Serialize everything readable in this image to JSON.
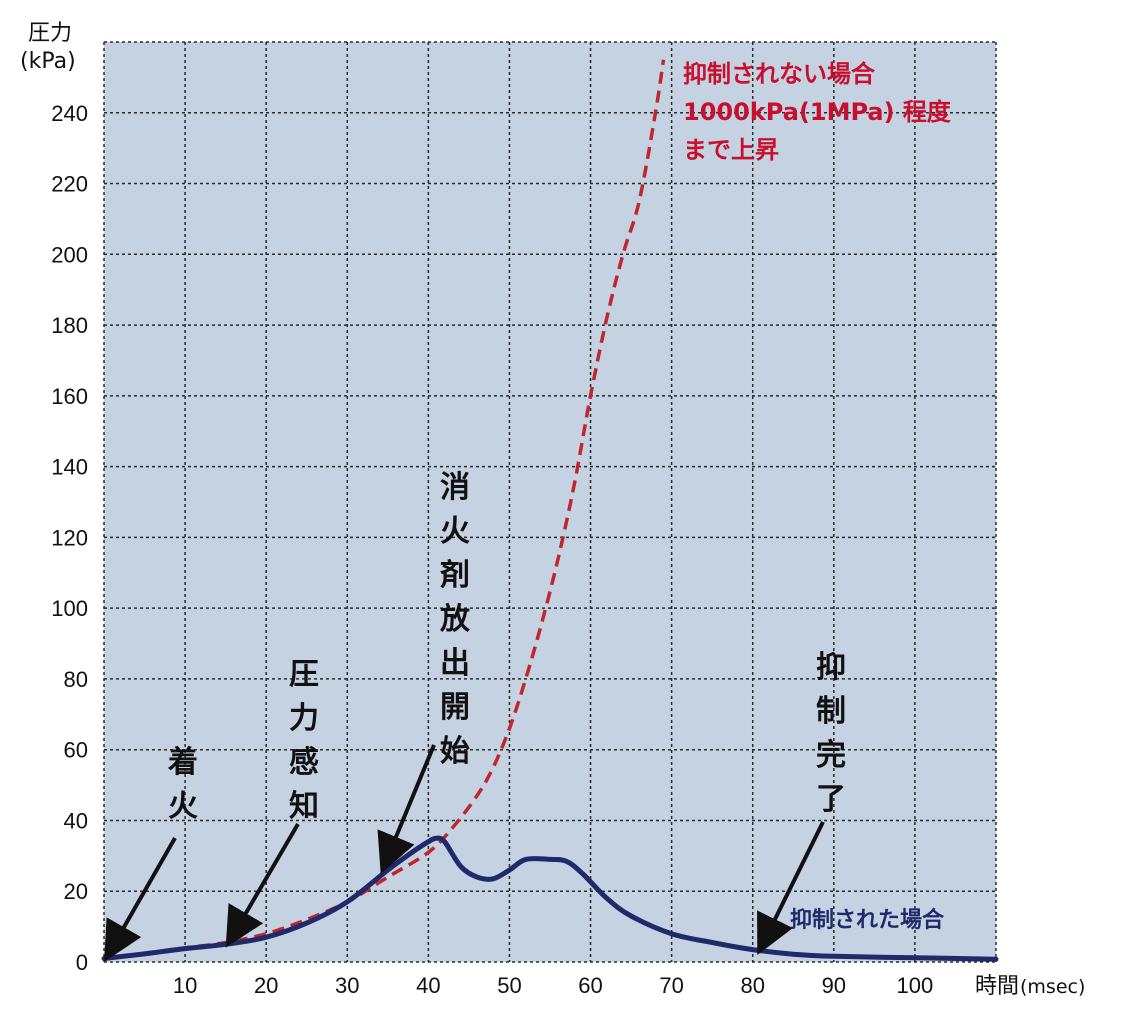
{
  "chart_data": {
    "type": "line",
    "ylabel": "圧力",
    "yunit": "(kPa)",
    "xlabel": "時間",
    "xunit": "(msec)",
    "xlim": [
      0,
      110
    ],
    "ylim": [
      0,
      260
    ],
    "xticks": [
      10,
      20,
      30,
      40,
      50,
      60,
      70,
      80,
      90,
      100
    ],
    "yticks": [
      0,
      20,
      40,
      60,
      80,
      100,
      120,
      140,
      160,
      180,
      200,
      220,
      240
    ],
    "grid": true,
    "background_color": "#c5d2e2",
    "series": [
      {
        "name": "抑制されない場合",
        "style": "dashed",
        "color": "#c0272d",
        "x": [
          0,
          5,
          10,
          15,
          20,
          25,
          30,
          35,
          40,
          43,
          46,
          48,
          50,
          52,
          54,
          56,
          58,
          60,
          62,
          64,
          66,
          68,
          69
        ],
        "y": [
          1,
          2.5,
          4,
          5.5,
          8,
          12,
          17,
          24,
          31,
          38,
          47,
          55,
          66,
          80,
          96,
          114,
          135,
          160,
          182,
          200,
          215,
          240,
          255
        ]
      },
      {
        "name": "抑制された場合",
        "style": "solid",
        "color": "#1f2a6b",
        "x": [
          0,
          5,
          10,
          15,
          20,
          25,
          30,
          35,
          38,
          40,
          41,
          42,
          44,
          46,
          48,
          50,
          52,
          55,
          57,
          59,
          62,
          65,
          70,
          75,
          80,
          85,
          90,
          100,
          110
        ],
        "y": [
          1,
          2.3,
          3.8,
          5,
          7,
          11,
          17,
          26,
          31,
          34,
          35,
          34,
          27,
          24,
          23.5,
          26,
          29,
          29,
          28.5,
          25,
          18,
          13,
          8,
          5.5,
          3.5,
          2.2,
          1.6,
          1.2,
          0.8
        ]
      }
    ],
    "annotations": [
      {
        "text": [
          "着",
          "火"
        ],
        "x": 0.5,
        "y": 2
      },
      {
        "text": [
          "圧",
          "力",
          "感",
          "知"
        ],
        "x": 15.5,
        "y": 6
      },
      {
        "text": [
          "消",
          "火",
          "剤",
          "放",
          "出",
          "開",
          "始"
        ],
        "x": 34.5,
        "y": 27
      },
      {
        "text": [
          "抑",
          "制",
          "完",
          "了"
        ],
        "x": 81,
        "y": 4
      }
    ],
    "red_note": [
      "抑制されない場合",
      "1000kPa(1MPa) 程度",
      "まで上昇"
    ],
    "blue_note": "抑制された場合"
  }
}
